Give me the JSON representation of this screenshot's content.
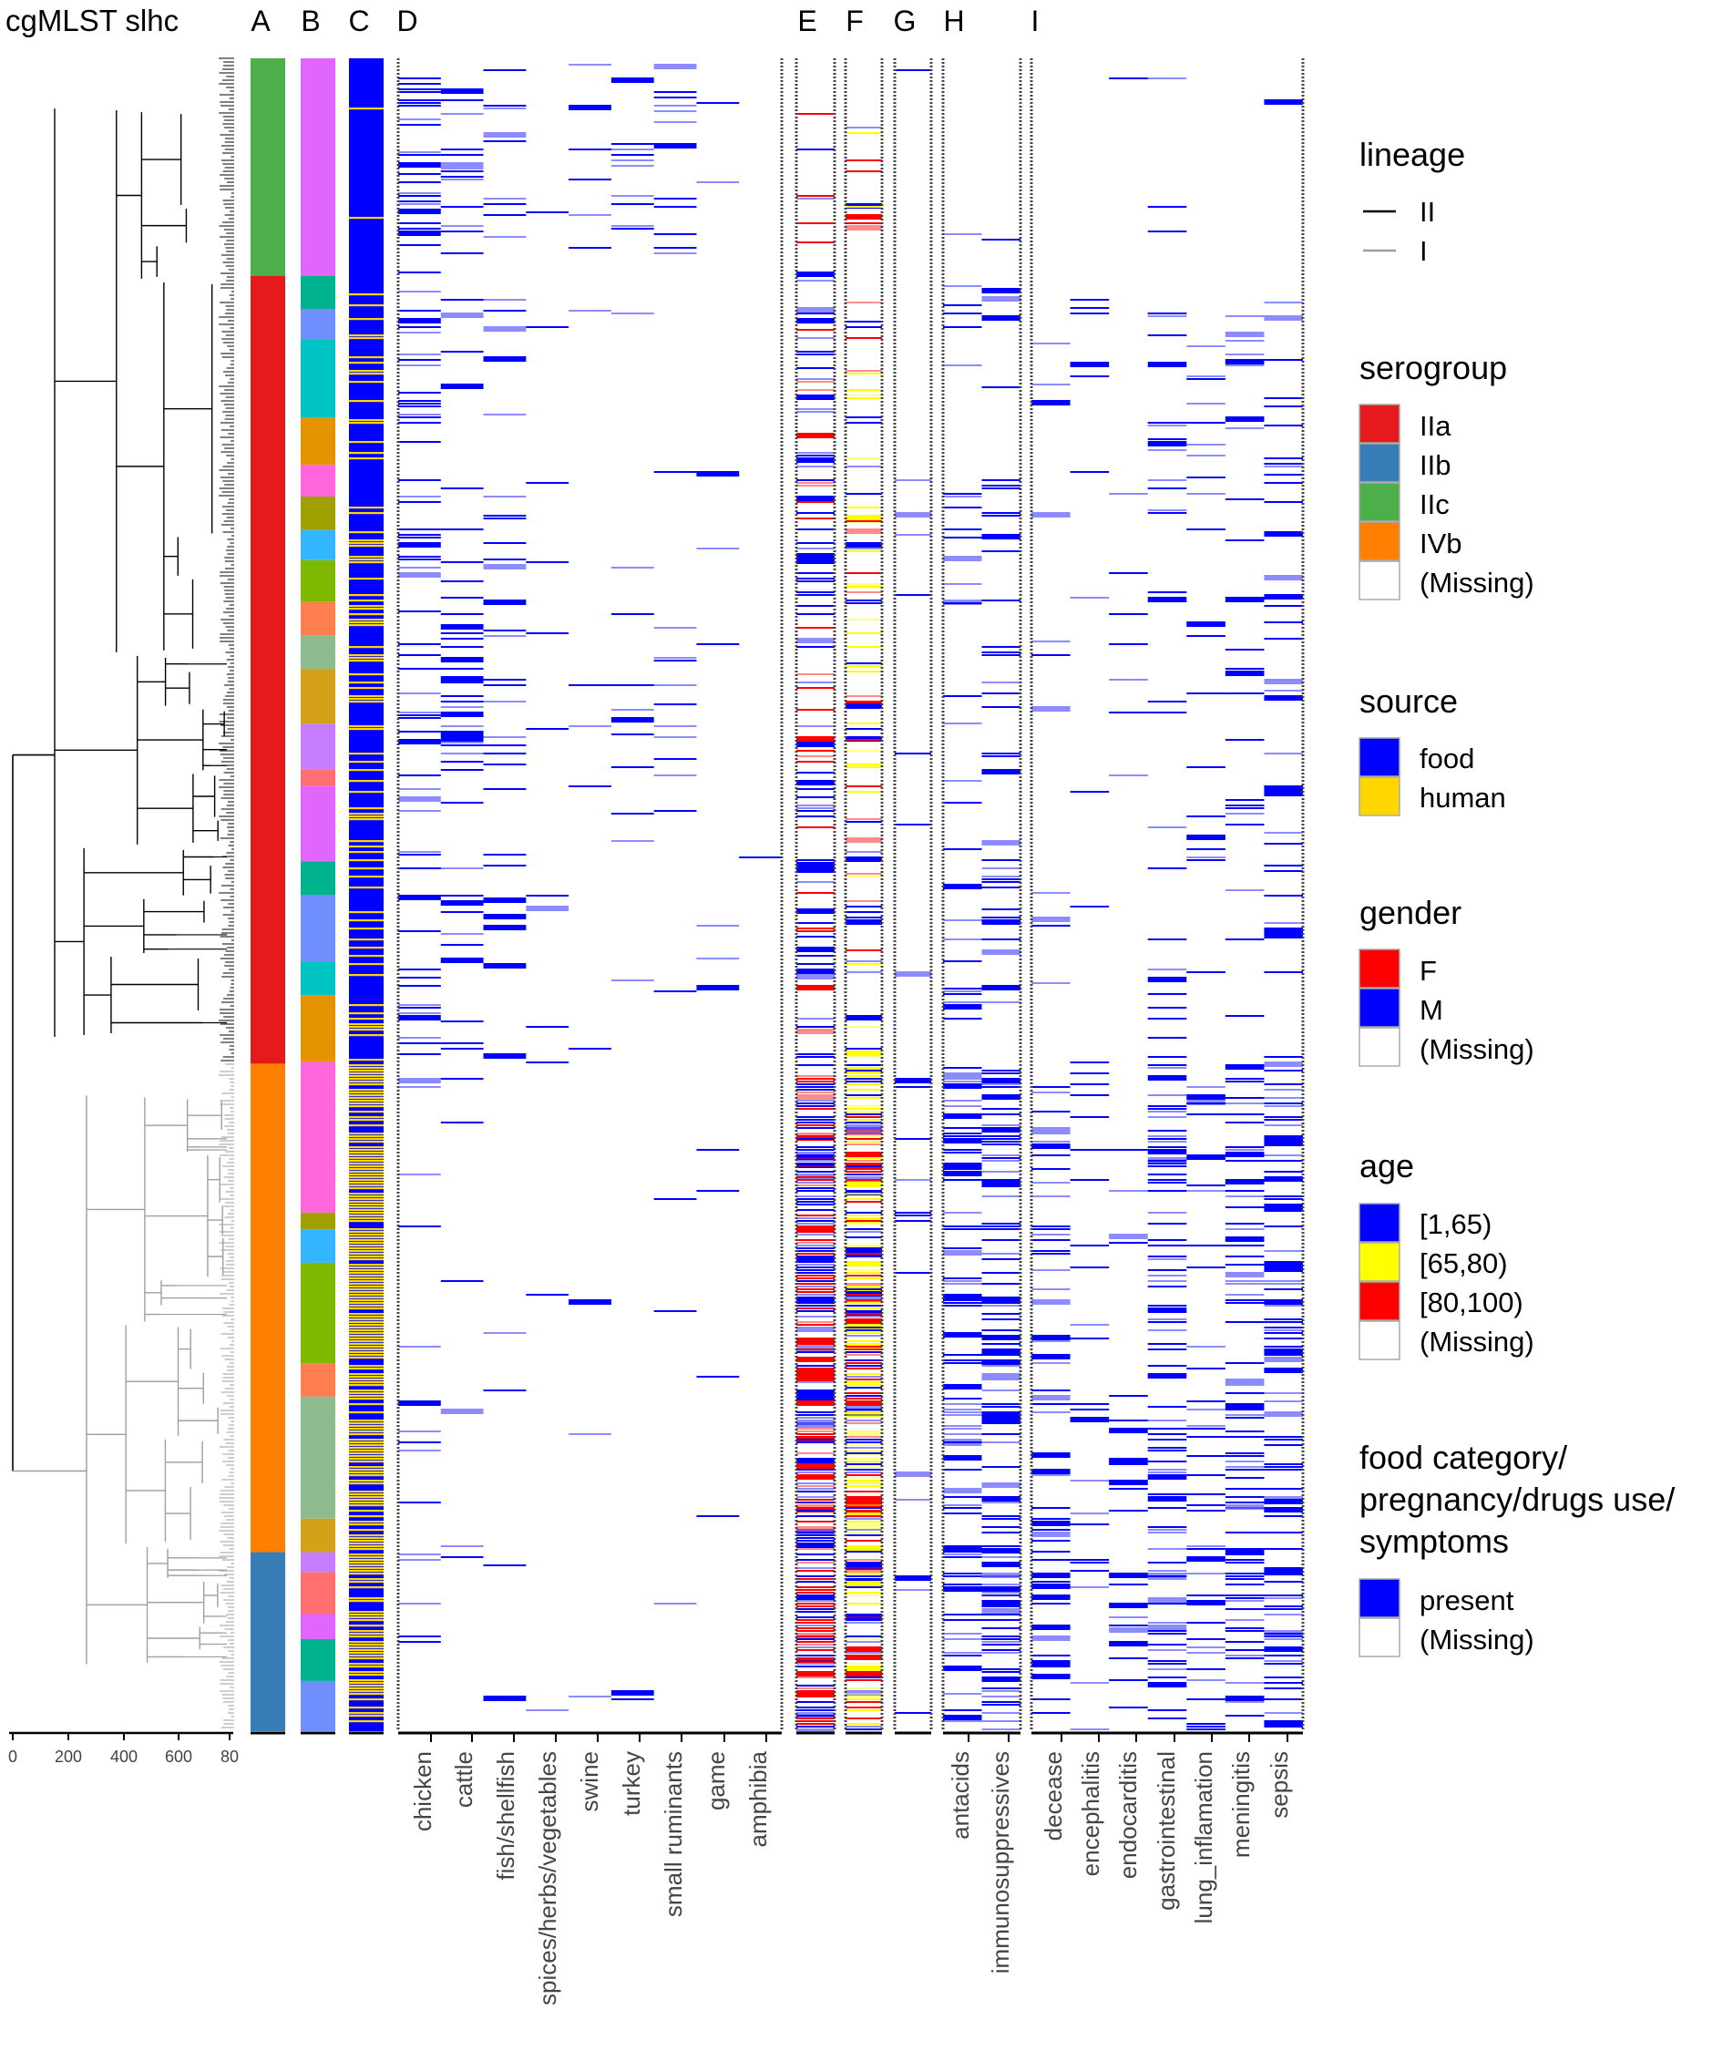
{
  "chart_data": {
    "type": "heatmap",
    "title": "cgMLST slhc",
    "dendrogram": {
      "axis_ticks": [
        "0",
        "200",
        "400",
        "600",
        "80"
      ],
      "lineage_colors": {
        "II": "#000000",
        "I": "#9e9e9e"
      }
    },
    "panel_letters": [
      "A",
      "B",
      "C",
      "D",
      "E",
      "F",
      "G",
      "H",
      "I"
    ],
    "panel_D_columns": [
      "chicken",
      "cattle",
      "fish/shellfish",
      "spices/herbs/vegetables",
      "swine",
      "turkey",
      "small ruminants",
      "game",
      "amphibia"
    ],
    "panel_H_columns": [
      "antacids",
      "immunosuppressives"
    ],
    "panel_I_columns": [
      "decease",
      "encephalitis",
      "endocarditis",
      "gastrointestinal",
      "lung_inflamation",
      "meningitis",
      "sepsis"
    ],
    "serogroup_segments": [
      {
        "group": "IIc",
        "from": 0.0,
        "to": 0.13
      },
      {
        "group": "IIa",
        "from": 0.13,
        "to": 0.601
      },
      {
        "group": "IVb",
        "from": 0.601,
        "to": 0.893
      },
      {
        "group": "IIb",
        "from": 0.893,
        "to": 1.0
      }
    ],
    "legend": {
      "lineage": {
        "title": "lineage",
        "entries": [
          {
            "label": "II",
            "color": "#000000"
          },
          {
            "label": "I",
            "color": "#9e9e9e"
          }
        ]
      },
      "serogroup": {
        "title": "serogroup",
        "entries": [
          {
            "label": "IIa",
            "color": "#e41a1c"
          },
          {
            "label": "IIb",
            "color": "#377eb8"
          },
          {
            "label": "IIc",
            "color": "#4daf4a"
          },
          {
            "label": "IVb",
            "color": "#ff7f00"
          },
          {
            "label": "(Missing)",
            "color": "#ffffff"
          }
        ]
      },
      "source": {
        "title": "source",
        "entries": [
          {
            "label": "food",
            "color": "#0000ff"
          },
          {
            "label": "human",
            "color": "#ffd700"
          }
        ]
      },
      "gender": {
        "title": "gender",
        "entries": [
          {
            "label": "F",
            "color": "#ff0000"
          },
          {
            "label": "M",
            "color": "#0000ff"
          },
          {
            "label": "(Missing)",
            "color": "#ffffff"
          }
        ]
      },
      "age": {
        "title": "age",
        "entries": [
          {
            "label": "[1,65)",
            "color": "#0000ff"
          },
          {
            "label": "[65,80)",
            "color": "#ffff00"
          },
          {
            "label": "[80,100)",
            "color": "#ff0000"
          },
          {
            "label": "(Missing)",
            "color": "#ffffff"
          }
        ]
      },
      "food": {
        "title_lines": [
          "food category/",
          "pregnancy/drugs use/",
          "symptoms"
        ],
        "entries": [
          {
            "label": "present",
            "color": "#0000ff"
          },
          {
            "label": "(Missing)",
            "color": "#ffffff"
          }
        ]
      }
    }
  }
}
